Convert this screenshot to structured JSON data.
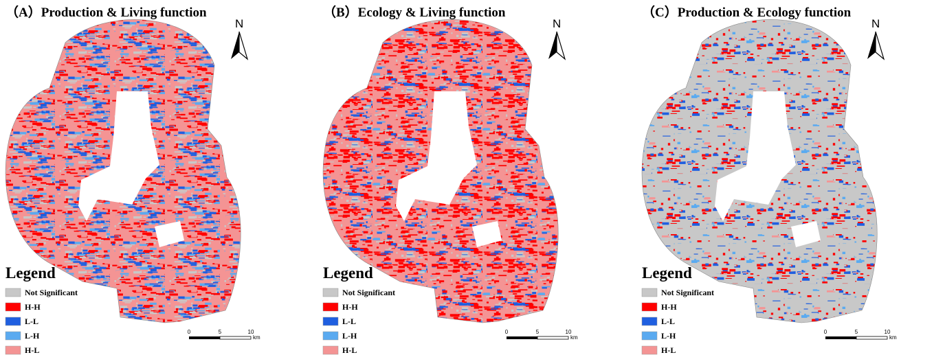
{
  "panels": [
    {
      "title": "（A）Production & Living function",
      "north": "N",
      "legend": {
        "title": "Legend",
        "items": [
          {
            "label": "Not Significant",
            "color": "#c8c8c8"
          },
          {
            "label": "H-H",
            "color": "#ff0000"
          },
          {
            "label": "L-L",
            "color": "#1f5fe0"
          },
          {
            "label": "L-H",
            "color": "#5aaaf0"
          },
          {
            "label": "H-L",
            "color": "#f49494"
          }
        ]
      },
      "scale": {
        "labels": [
          "0",
          "5",
          "10"
        ],
        "unit": "km"
      }
    },
    {
      "title": "（B）Ecology & Living function",
      "north": "N",
      "legend": {
        "title": "Legend",
        "items": [
          {
            "label": "Not Significant",
            "color": "#c8c8c8"
          },
          {
            "label": "H-H",
            "color": "#ff0000"
          },
          {
            "label": "L-L",
            "color": "#1f5fe0"
          },
          {
            "label": "L-H",
            "color": "#5aaaf0"
          },
          {
            "label": "H-L",
            "color": "#f49494"
          }
        ]
      },
      "scale": {
        "labels": [
          "0",
          "5",
          "10"
        ],
        "unit": "km"
      }
    },
    {
      "title": "（C）Production & Ecology function",
      "north": "N",
      "legend": {
        "title": "Legend",
        "items": [
          {
            "label": "Not Significant",
            "color": "#c8c8c8"
          },
          {
            "label": "H-H",
            "color": "#ff0000"
          },
          {
            "label": "L-L",
            "color": "#1f5fe0"
          },
          {
            "label": "L-H",
            "color": "#5aaaf0"
          },
          {
            "label": "H-L",
            "color": "#f49494"
          }
        ]
      },
      "scale": {
        "labels": [
          "0",
          "5",
          "10"
        ],
        "unit": "km"
      }
    }
  ]
}
